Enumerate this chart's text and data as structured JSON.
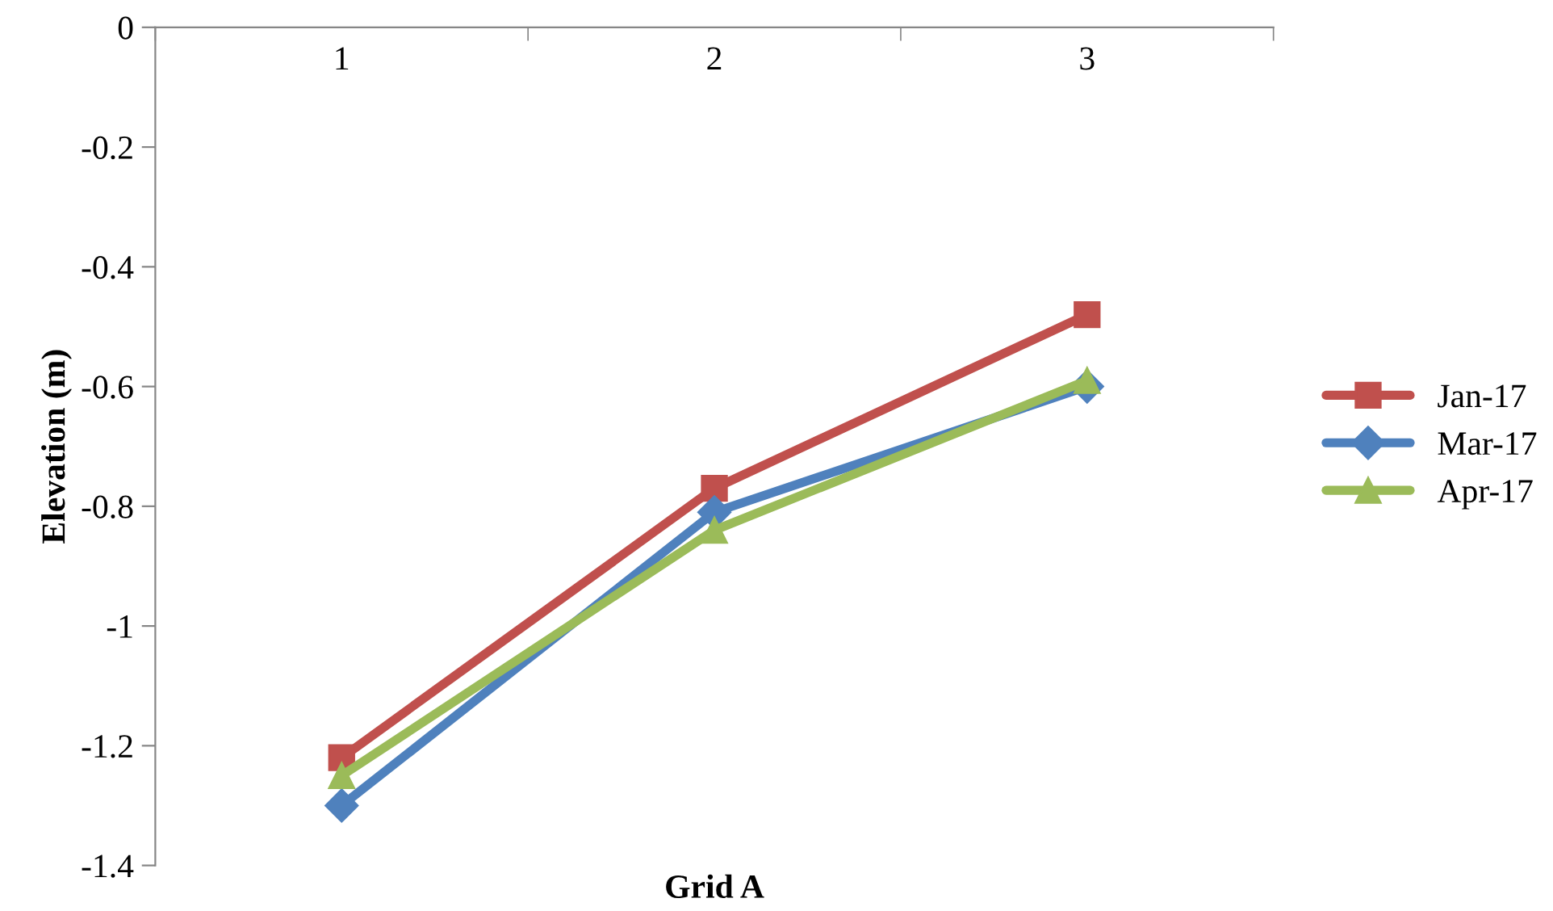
{
  "chart_data": {
    "type": "line",
    "xlabel": "Grid A",
    "ylabel": "Elevation (m)",
    "categories": [
      "1",
      "2",
      "3"
    ],
    "series": [
      {
        "name": "Jan-17",
        "color": "#c0504d",
        "marker": "square",
        "values": [
          -1.22,
          -0.77,
          -0.48
        ]
      },
      {
        "name": "Mar-17",
        "color": "#4f81bd",
        "marker": "diamond",
        "values": [
          -1.3,
          -0.81,
          -0.6
        ]
      },
      {
        "name": "Apr-17",
        "color": "#9bbb59",
        "marker": "triangle",
        "values": [
          -1.25,
          -0.84,
          -0.59
        ]
      }
    ],
    "ylim": [
      -1.4,
      0
    ],
    "yticks": [
      0,
      -0.2,
      -0.4,
      -0.6,
      -0.8,
      -1,
      -1.2,
      -1.4
    ],
    "grid": false,
    "legend": "right",
    "line_style": "solid"
  }
}
